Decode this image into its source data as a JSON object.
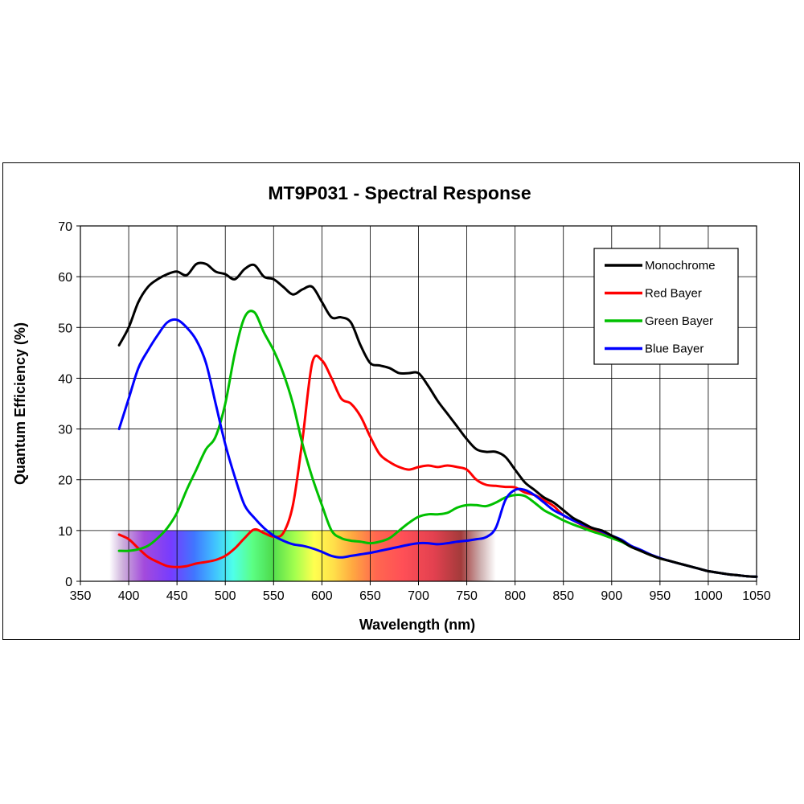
{
  "chart_data": {
    "type": "line",
    "title": "MT9P031 - Spectral Response",
    "xlabel": "Wavelength (nm)",
    "ylabel": "Quantum Efficiency (%)",
    "xlim": [
      350,
      1050
    ],
    "ylim": [
      0,
      70
    ],
    "xticks": [
      350,
      400,
      450,
      500,
      550,
      600,
      650,
      700,
      750,
      800,
      850,
      900,
      950,
      1000,
      1050
    ],
    "yticks": [
      0,
      10,
      20,
      30,
      40,
      50,
      60,
      70
    ],
    "grid": true,
    "legend_position": "top-right",
    "spectrum_band": {
      "x_range": [
        380,
        780
      ],
      "y_range": [
        0,
        10
      ]
    },
    "series": [
      {
        "name": "Monochrome",
        "color": "#000000",
        "x": [
          390,
          400,
          410,
          420,
          430,
          440,
          450,
          460,
          470,
          480,
          490,
          500,
          510,
          520,
          530,
          540,
          550,
          560,
          570,
          580,
          590,
          600,
          610,
          620,
          630,
          640,
          650,
          660,
          670,
          680,
          690,
          700,
          710,
          720,
          730,
          740,
          750,
          760,
          770,
          780,
          790,
          800,
          810,
          820,
          830,
          840,
          850,
          860,
          870,
          880,
          890,
          900,
          910,
          920,
          930,
          940,
          950,
          960,
          970,
          980,
          990,
          1000,
          1010,
          1020,
          1030,
          1040,
          1050
        ],
        "y": [
          46.5,
          50,
          55,
          58,
          59.5,
          60.5,
          61,
          60.3,
          62.5,
          62.5,
          61,
          60.5,
          59.5,
          61.5,
          62.3,
          60,
          59.5,
          58,
          56.5,
          57.5,
          58,
          55,
          52,
          52,
          51,
          46.5,
          43,
          42.5,
          42,
          41,
          41,
          41,
          38.5,
          35.5,
          33,
          30.5,
          28,
          26,
          25.5,
          25.5,
          24.5,
          22,
          19.5,
          18,
          16.5,
          15.5,
          14,
          12.5,
          11.5,
          10.5,
          10,
          9,
          8,
          6.8,
          6,
          5.2,
          4.5,
          4,
          3.5,
          3,
          2.5,
          2,
          1.7,
          1.4,
          1.2,
          1,
          0.9
        ]
      },
      {
        "name": "Red Bayer",
        "color": "#ff0000",
        "x": [
          390,
          400,
          410,
          420,
          430,
          440,
          450,
          460,
          470,
          480,
          490,
          500,
          510,
          520,
          530,
          540,
          550,
          560,
          570,
          580,
          590,
          600,
          610,
          620,
          630,
          640,
          650,
          660,
          670,
          680,
          690,
          700,
          710,
          720,
          730,
          740,
          750,
          760,
          770,
          780,
          790,
          800,
          810,
          820,
          830,
          840,
          850,
          860,
          870,
          880,
          890,
          900,
          910,
          920,
          930,
          940,
          950,
          960,
          970,
          980,
          990,
          1000,
          1010,
          1020,
          1030,
          1040,
          1050
        ],
        "y": [
          9.2,
          8.3,
          6.5,
          4.8,
          3.8,
          3.0,
          2.8,
          3.0,
          3.5,
          3.8,
          4.2,
          5.0,
          6.5,
          8.5,
          10.2,
          9.5,
          8.8,
          9.5,
          15,
          28,
          43,
          43.5,
          40,
          36,
          35,
          32.5,
          28.5,
          25,
          23.5,
          22.5,
          22,
          22.5,
          22.8,
          22.5,
          22.8,
          22.5,
          22,
          20,
          19,
          18.8,
          18.6,
          18.5,
          17.5,
          17,
          16,
          14.8,
          13,
          12,
          11,
          10.2,
          9.5,
          8.7,
          8,
          6.8,
          6,
          5.2,
          4.5,
          4,
          3.5,
          3,
          2.5,
          2,
          1.7,
          1.4,
          1.2,
          1,
          0.9
        ]
      },
      {
        "name": "Green Bayer",
        "color": "#00c000",
        "x": [
          390,
          400,
          410,
          420,
          430,
          440,
          450,
          460,
          470,
          480,
          490,
          500,
          510,
          520,
          530,
          540,
          550,
          560,
          570,
          580,
          590,
          600,
          610,
          620,
          630,
          640,
          650,
          660,
          670,
          680,
          690,
          700,
          710,
          720,
          730,
          740,
          750,
          760,
          770,
          780,
          790,
          800,
          810,
          820,
          830,
          840,
          850,
          860,
          870,
          880,
          890,
          900,
          910,
          920,
          930,
          940,
          950,
          960,
          970,
          980,
          990,
          1000,
          1010,
          1020,
          1030,
          1040,
          1050
        ],
        "y": [
          6,
          6,
          6.3,
          7,
          8.5,
          10.5,
          13.5,
          18,
          22,
          26,
          28.5,
          35,
          45,
          52,
          53,
          49,
          45.5,
          41,
          35,
          27,
          20.5,
          15,
          10,
          8.5,
          8,
          7.8,
          7.5,
          7.8,
          8.5,
          10,
          11.5,
          12.7,
          13.2,
          13.2,
          13.5,
          14.5,
          15,
          15,
          14.8,
          15.5,
          16.5,
          17,
          16.8,
          15.5,
          14,
          13,
          12,
          11.2,
          10.5,
          9.8,
          9.2,
          8.5,
          7.8,
          6.8,
          6,
          5.2,
          4.5,
          4,
          3.5,
          3,
          2.5,
          2,
          1.7,
          1.4,
          1.2,
          1,
          0.9
        ]
      },
      {
        "name": "Blue Bayer",
        "color": "#0000ff",
        "x": [
          390,
          400,
          410,
          420,
          430,
          440,
          450,
          460,
          470,
          480,
          490,
          500,
          510,
          520,
          530,
          540,
          550,
          560,
          570,
          580,
          590,
          600,
          610,
          620,
          630,
          640,
          650,
          660,
          670,
          680,
          690,
          700,
          710,
          720,
          730,
          740,
          750,
          760,
          770,
          780,
          790,
          800,
          810,
          820,
          830,
          840,
          850,
          860,
          870,
          880,
          890,
          900,
          910,
          920,
          930,
          940,
          950,
          960,
          970,
          980,
          990,
          1000,
          1010,
          1020,
          1030,
          1040,
          1050
        ],
        "y": [
          30,
          36,
          42,
          45.5,
          48.5,
          51,
          51.5,
          50,
          47.5,
          43,
          35,
          27,
          20.5,
          15,
          12.5,
          10.5,
          9,
          8,
          7.3,
          7,
          6.5,
          5.8,
          5,
          4.7,
          5,
          5.3,
          5.6,
          6,
          6.4,
          6.8,
          7.2,
          7.5,
          7.5,
          7.3,
          7.5,
          7.8,
          8,
          8.3,
          8.7,
          10.5,
          16,
          18,
          18,
          17,
          15.5,
          14,
          13,
          12,
          11.2,
          10.5,
          9.8,
          9,
          8.2,
          7,
          6.2,
          5.3,
          4.6,
          4,
          3.5,
          3,
          2.5,
          2,
          1.7,
          1.4,
          1.2,
          1,
          0.9
        ]
      }
    ]
  }
}
